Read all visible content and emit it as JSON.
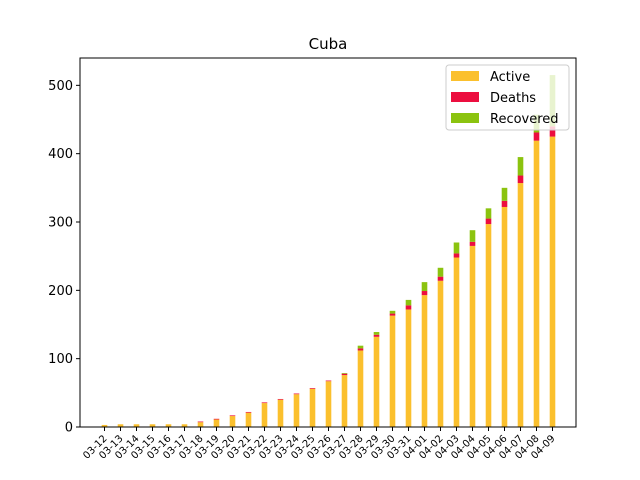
{
  "chart_data": {
    "type": "bar",
    "stacked": true,
    "title": "Cuba",
    "xlabel": "",
    "ylabel": "",
    "ylim": [
      0,
      540
    ],
    "yticks": [
      0,
      100,
      200,
      300,
      400,
      500
    ],
    "grid": false,
    "legend_position": "top-right",
    "categories": [
      "03-12",
      "03-13",
      "03-14",
      "03-15",
      "03-16",
      "03-17",
      "03-18",
      "03-19",
      "03-20",
      "03-21",
      "03-22",
      "03-23",
      "03-24",
      "03-25",
      "03-26",
      "03-27",
      "03-28",
      "03-29",
      "03-30",
      "03-31",
      "04-01",
      "04-02",
      "04-03",
      "04-04",
      "04-05",
      "04-06",
      "04-07",
      "04-08",
      "04-09"
    ],
    "series": [
      {
        "name": "Active",
        "color": "#fbc02d",
        "values": [
          3,
          4,
          4,
          4,
          4,
          4,
          7,
          11,
          16,
          21,
          35,
          40,
          48,
          56,
          67,
          76,
          112,
          132,
          163,
          172,
          193,
          214,
          248,
          265,
          297,
          322,
          357,
          419,
          425
        ]
      },
      {
        "name": "Deaths",
        "color": "#ec0e3f",
        "values": [
          0,
          0,
          0,
          0,
          0,
          0,
          1,
          1,
          1,
          1,
          1,
          1,
          1,
          1,
          1,
          2,
          3,
          3,
          3,
          6,
          6,
          6,
          6,
          6,
          8,
          9,
          11,
          12,
          15
        ]
      },
      {
        "name": "Recovered",
        "color": "#8bc30f",
        "values": [
          0,
          0,
          0,
          0,
          0,
          0,
          0,
          0,
          0,
          0,
          0,
          0,
          0,
          0,
          0,
          1,
          4,
          4,
          4,
          8,
          13,
          13,
          16,
          17,
          15,
          19,
          27,
          26,
          75
        ]
      }
    ]
  }
}
